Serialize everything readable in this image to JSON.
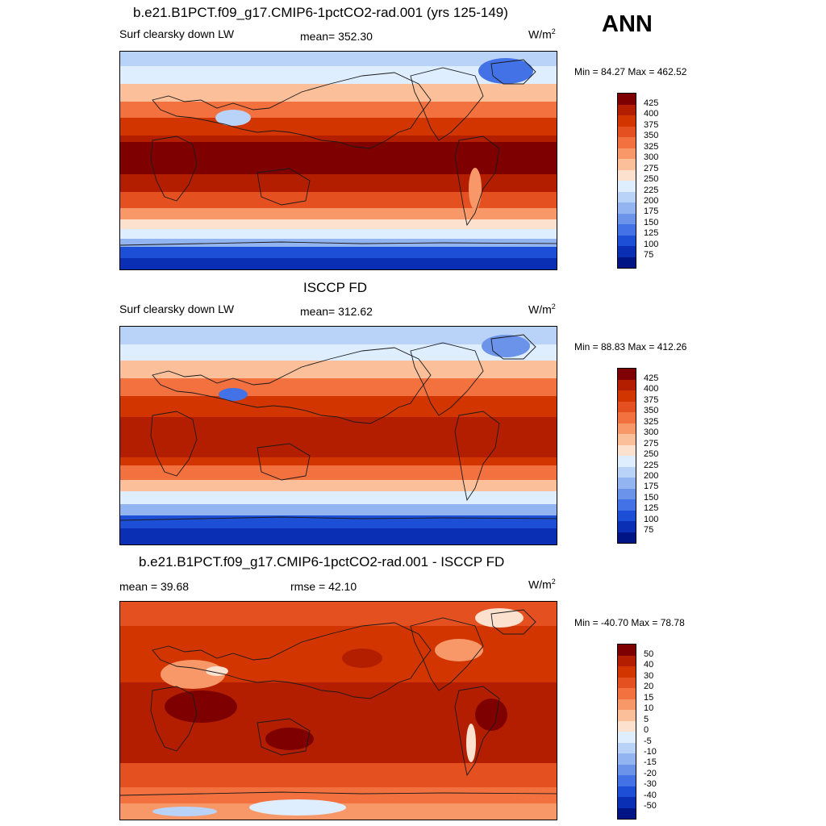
{
  "season_label": "ANN",
  "colors": {
    "abs_scale": [
      "#7f0000",
      "#b41e00",
      "#d33500",
      "#e55020",
      "#f3703f",
      "#f89868",
      "#fbbf9a",
      "#fde1cf",
      "#deeeff",
      "#b9d2f8",
      "#92b4f0",
      "#6b93ea",
      "#4372e6",
      "#1c4ed6",
      "#0b2fb4",
      "#001585"
    ],
    "diff_scale": [
      "#7f0000",
      "#b41e00",
      "#d33500",
      "#e55020",
      "#f3703f",
      "#f89868",
      "#fbbf9a",
      "#fde1cf",
      "#ffffff",
      "#deeeff",
      "#b9d2f8",
      "#92b4f0",
      "#6b93ea",
      "#4372e6",
      "#1c4ed6",
      "#0b2fb4",
      "#001585"
    ]
  },
  "panels": [
    {
      "title": "b.e21.B1PCT.f09_g17.CMIP6-1pctCO2-rad.001 (yrs 125-149)",
      "left_label": "Surf clearsky down LW",
      "center_label": "mean= 352.30",
      "units": "W/m",
      "units_sup": "2",
      "minmax": "Min =  84.27 Max = 462.52",
      "colorbar_labels": [
        "425",
        "400",
        "375",
        "350",
        "325",
        "300",
        "275",
        "250",
        "225",
        "200",
        "175",
        "150",
        "125",
        "100",
        "75"
      ]
    },
    {
      "title": "ISCCP FD",
      "left_label": "Surf clearsky down LW",
      "center_label": "mean= 312.62",
      "units": "W/m",
      "units_sup": "2",
      "minmax": "Min =  88.83 Max = 412.26",
      "colorbar_labels": [
        "425",
        "400",
        "375",
        "350",
        "325",
        "300",
        "275",
        "250",
        "225",
        "200",
        "175",
        "150",
        "125",
        "100",
        "75"
      ]
    },
    {
      "title": "b.e21.B1PCT.f09_g17.CMIP6-1pctCO2-rad.001 - ISCCP FD",
      "left_label": "mean =  39.68",
      "center_label": "rmse =  42.10",
      "units": "W/m",
      "units_sup": "2",
      "minmax": "Min = -40.70 Max =  78.78",
      "colorbar_labels": [
        "50",
        "40",
        "30",
        "20",
        "15",
        "10",
        "5",
        "0",
        "-5",
        "-10",
        "-15",
        "-20",
        "-30",
        "-40",
        "-50"
      ]
    }
  ]
}
